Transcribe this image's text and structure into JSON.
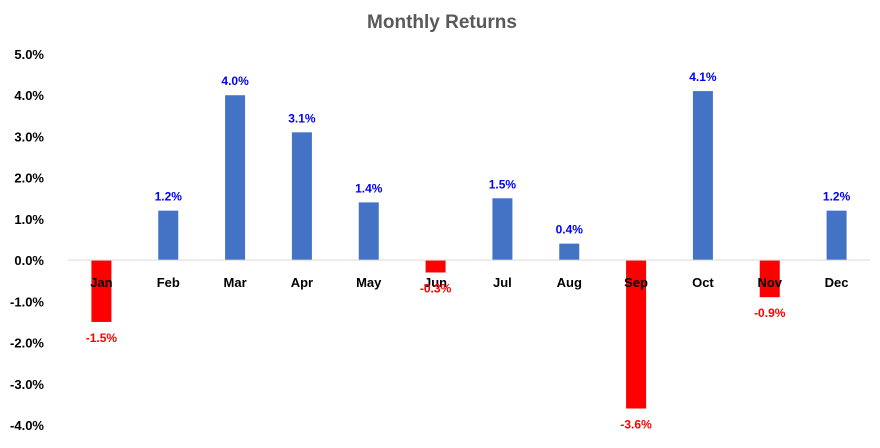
{
  "chart_data": {
    "type": "bar",
    "title": "Monthly Returns",
    "xlabel": "",
    "ylabel": "",
    "categories": [
      "Jan",
      "Feb",
      "Mar",
      "Apr",
      "May",
      "Jun",
      "Jul",
      "Aug",
      "Sep",
      "Oct",
      "Nov",
      "Dec"
    ],
    "values": [
      -1.5,
      1.2,
      4.0,
      3.1,
      1.4,
      -0.3,
      1.5,
      0.4,
      -3.6,
      4.1,
      -0.9,
      1.2
    ],
    "data_labels": [
      "-1.5%",
      "1.2%",
      "4.0%",
      "3.1%",
      "1.4%",
      "-0.3%",
      "1.5%",
      "0.4%",
      "-3.6%",
      "4.1%",
      "-0.9%",
      "1.2%"
    ],
    "ylim": [
      -4.0,
      5.0
    ],
    "yticks": [
      5.0,
      4.0,
      3.0,
      2.0,
      1.0,
      0.0,
      -1.0,
      -2.0,
      -3.0,
      -4.0
    ],
    "ytick_labels": [
      "5.0%",
      "4.0%",
      "3.0%",
      "2.0%",
      "1.0%",
      "0.0%",
      "-1.0%",
      "-2.0%",
      "-3.0%",
      "-4.0%"
    ],
    "grid": false,
    "legend": "none",
    "colors": {
      "positive_bar": "#4472C4",
      "negative_bar": "#FF0000",
      "positive_label": "#0000FF",
      "negative_label": "#FF0000",
      "axis_line": "#D9D9D9"
    }
  }
}
